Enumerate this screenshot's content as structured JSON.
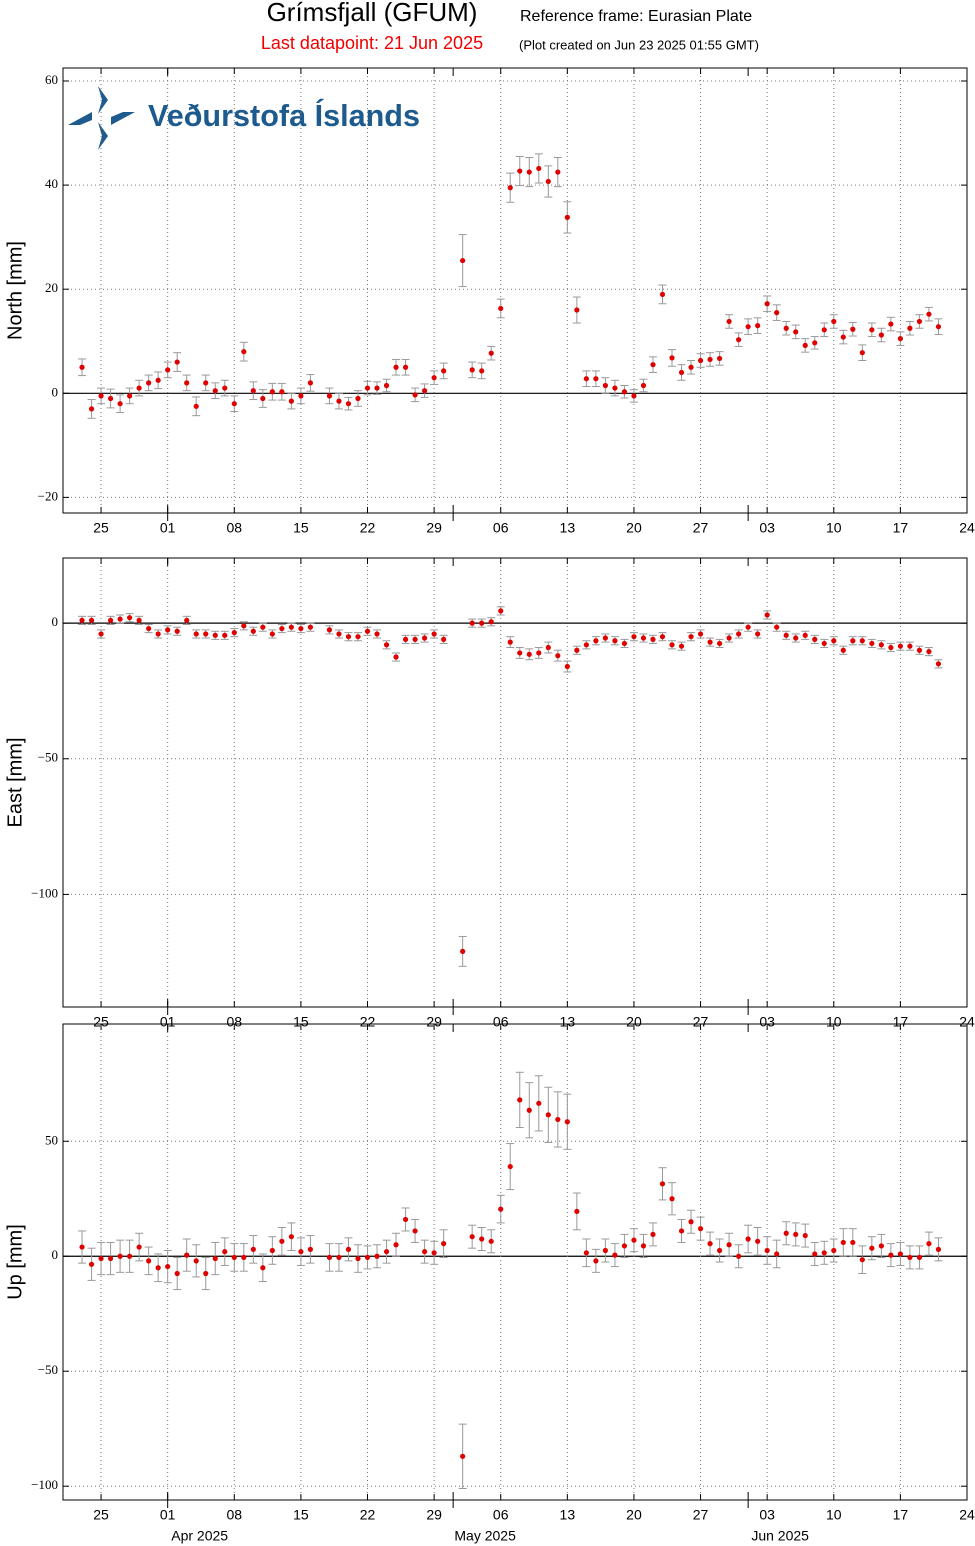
{
  "header": {
    "title": "Grímsfjall (GFUM)",
    "reference_frame": "Reference frame: Eurasian Plate",
    "last_datapoint": "Last datapoint: 21 Jun 2025",
    "created": "(Plot created on Jun 23 2025 01:55 GMT)",
    "logo_text": "Veðurstofa Íslands"
  },
  "chart_data": [
    {
      "type": "scatter",
      "ylabel": "North [mm]",
      "color": "#e00000",
      "error_color": "#999999",
      "grid": true,
      "zero_line": true,
      "xlim": [
        "2025-03-21",
        "2025-06-24"
      ],
      "xticks": [
        {
          "value": "2025-03-25",
          "label": "25"
        },
        {
          "value": "2025-04-01",
          "label": "01"
        },
        {
          "value": "2025-04-08",
          "label": "08"
        },
        {
          "value": "2025-04-15",
          "label": "15"
        },
        {
          "value": "2025-04-22",
          "label": "22"
        },
        {
          "value": "2025-04-29",
          "label": "29"
        },
        {
          "value": "2025-05-06",
          "label": "06"
        },
        {
          "value": "2025-05-13",
          "label": "13"
        },
        {
          "value": "2025-05-20",
          "label": "20"
        },
        {
          "value": "2025-05-27",
          "label": "27"
        },
        {
          "value": "2025-06-03",
          "label": "03"
        },
        {
          "value": "2025-06-10",
          "label": "10"
        },
        {
          "value": "2025-06-17",
          "label": "17"
        },
        {
          "value": "2025-06-24",
          "label": "24"
        }
      ],
      "ylim": [
        -23,
        62.5
      ],
      "yticks": [
        {
          "value": -20,
          "label": "−20"
        },
        0,
        20,
        40,
        60
      ],
      "x": [
        "2025-03-23",
        "2025-03-24",
        "2025-03-25",
        "2025-03-26",
        "2025-03-27",
        "2025-03-28",
        "2025-03-29",
        "2025-03-30",
        "2025-03-31",
        "2025-04-01",
        "2025-04-02",
        "2025-04-03",
        "2025-04-04",
        "2025-04-05",
        "2025-04-06",
        "2025-04-07",
        "2025-04-08",
        "2025-04-09",
        "2025-04-10",
        "2025-04-11",
        "2025-04-12",
        "2025-04-13",
        "2025-04-14",
        "2025-04-15",
        "2025-04-16",
        "2025-04-18",
        "2025-04-19",
        "2025-04-20",
        "2025-04-21",
        "2025-04-22",
        "2025-04-23",
        "2025-04-24",
        "2025-04-25",
        "2025-04-26",
        "2025-04-27",
        "2025-04-28",
        "2025-04-29",
        "2025-04-30",
        "2025-05-02",
        "2025-05-03",
        "2025-05-04",
        "2025-05-05",
        "2025-05-06",
        "2025-05-07",
        "2025-05-08",
        "2025-05-09",
        "2025-05-10",
        "2025-05-11",
        "2025-05-12",
        "2025-05-13",
        "2025-05-14",
        "2025-05-15",
        "2025-05-16",
        "2025-05-17",
        "2025-05-18",
        "2025-05-19",
        "2025-05-20",
        "2025-05-21",
        "2025-05-22",
        "2025-05-23",
        "2025-05-24",
        "2025-05-25",
        "2025-05-26",
        "2025-05-27",
        "2025-05-28",
        "2025-05-29",
        "2025-05-30",
        "2025-05-31",
        "2025-06-01",
        "2025-06-02",
        "2025-06-03",
        "2025-06-04",
        "2025-06-05",
        "2025-06-06",
        "2025-06-07",
        "2025-06-08",
        "2025-06-09",
        "2025-06-10",
        "2025-06-11",
        "2025-06-12",
        "2025-06-13",
        "2025-06-14",
        "2025-06-15",
        "2025-06-16",
        "2025-06-17",
        "2025-06-18",
        "2025-06-19",
        "2025-06-20",
        "2025-06-21"
      ],
      "values": [
        5,
        -3,
        -0.5,
        -1,
        -2,
        -0.5,
        1,
        2,
        2.5,
        4.5,
        6,
        2,
        -2.5,
        2,
        0.5,
        1,
        -2,
        8,
        0.5,
        -1,
        0.3,
        0.3,
        -1.5,
        -0.5,
        2,
        -0.5,
        -1.5,
        -2,
        -1,
        1,
        1,
        1.5,
        5,
        5,
        -0.3,
        0.5,
        3,
        4.3,
        25.5,
        4.5,
        4.3,
        7.7,
        16.3,
        39.5,
        42.7,
        42.5,
        43.2,
        40.7,
        42.5,
        33.8,
        16,
        2.8,
        2.8,
        1.5,
        1,
        0.3,
        -0.5,
        1.5,
        5.5,
        19,
        6.8,
        4,
        5,
        6.3,
        6.5,
        6.7,
        13.8,
        10.3,
        12.8,
        13,
        17.2,
        15.5,
        12.5,
        11.8,
        9.2,
        9.7,
        12.2,
        13.8,
        10.8,
        12.3,
        7.8,
        12.2,
        11.2,
        13.3,
        10.5,
        12.5,
        13.8,
        15.2,
        12.8
      ],
      "errors": [
        1.6,
        1.8,
        1.5,
        1.8,
        1.7,
        1.5,
        1.5,
        1.5,
        1.6,
        1.5,
        1.8,
        1.5,
        1.8,
        1.5,
        1.5,
        1.5,
        1.5,
        1.8,
        1.7,
        1.7,
        1.6,
        1.6,
        1.5,
        1.5,
        1.6,
        1.5,
        1.5,
        1.2,
        1.5,
        1.3,
        1.2,
        1.2,
        1.5,
        1.5,
        1.3,
        1.3,
        1.3,
        1.5,
        5,
        1.5,
        1.5,
        1.3,
        1.8,
        2.8,
        2.8,
        2.8,
        2.8,
        3,
        2.8,
        3,
        2.5,
        1.5,
        1.5,
        1.5,
        1.5,
        1.2,
        1.2,
        1.2,
        1.5,
        1.8,
        1.6,
        1.5,
        1.3,
        1.3,
        1.3,
        1.3,
        1.3,
        1.3,
        1.5,
        1.5,
        1.5,
        1.5,
        1.3,
        1.3,
        1.3,
        1.2,
        1.3,
        1.3,
        1.3,
        1.3,
        1.5,
        1.3,
        1.3,
        1.3,
        1.3,
        1.3,
        1.3,
        1.3,
        1.5
      ]
    },
    {
      "type": "scatter",
      "ylabel": "East [mm]",
      "color": "#e00000",
      "error_color": "#999999",
      "grid": true,
      "zero_line": true,
      "xlim": [
        "2025-03-21",
        "2025-06-24"
      ],
      "xticks": [
        {
          "value": "2025-03-25",
          "label": "25"
        },
        {
          "value": "2025-04-01",
          "label": "01"
        },
        {
          "value": "2025-04-08",
          "label": "08"
        },
        {
          "value": "2025-04-15",
          "label": "15"
        },
        {
          "value": "2025-04-22",
          "label": "22"
        },
        {
          "value": "2025-04-29",
          "label": "29"
        },
        {
          "value": "2025-05-06",
          "label": "06"
        },
        {
          "value": "2025-05-13",
          "label": "13"
        },
        {
          "value": "2025-05-20",
          "label": "20"
        },
        {
          "value": "2025-05-27",
          "label": "27"
        },
        {
          "value": "2025-06-03",
          "label": "03"
        },
        {
          "value": "2025-06-10",
          "label": "10"
        },
        {
          "value": "2025-06-17",
          "label": "17"
        },
        {
          "value": "2025-06-24",
          "label": "24"
        }
      ],
      "ylim": [
        -141.5,
        24
      ],
      "yticks": [
        {
          "value": -100,
          "label": "−100"
        },
        {
          "value": -50,
          "label": "−50"
        },
        0
      ],
      "x": [
        "2025-03-23",
        "2025-03-24",
        "2025-03-25",
        "2025-03-26",
        "2025-03-27",
        "2025-03-28",
        "2025-03-29",
        "2025-03-30",
        "2025-03-31",
        "2025-04-01",
        "2025-04-02",
        "2025-04-03",
        "2025-04-04",
        "2025-04-05",
        "2025-04-06",
        "2025-04-07",
        "2025-04-08",
        "2025-04-09",
        "2025-04-10",
        "2025-04-11",
        "2025-04-12",
        "2025-04-13",
        "2025-04-14",
        "2025-04-15",
        "2025-04-16",
        "2025-04-18",
        "2025-04-19",
        "2025-04-20",
        "2025-04-21",
        "2025-04-22",
        "2025-04-23",
        "2025-04-24",
        "2025-04-25",
        "2025-04-26",
        "2025-04-27",
        "2025-04-28",
        "2025-04-29",
        "2025-04-30",
        "2025-05-02",
        "2025-05-03",
        "2025-05-04",
        "2025-05-05",
        "2025-05-06",
        "2025-05-07",
        "2025-05-08",
        "2025-05-09",
        "2025-05-10",
        "2025-05-11",
        "2025-05-12",
        "2025-05-13",
        "2025-05-14",
        "2025-05-15",
        "2025-05-16",
        "2025-05-17",
        "2025-05-18",
        "2025-05-19",
        "2025-05-20",
        "2025-05-21",
        "2025-05-22",
        "2025-05-23",
        "2025-05-24",
        "2025-05-25",
        "2025-05-26",
        "2025-05-27",
        "2025-05-28",
        "2025-05-29",
        "2025-05-30",
        "2025-05-31",
        "2025-06-01",
        "2025-06-02",
        "2025-06-03",
        "2025-06-04",
        "2025-06-05",
        "2025-06-06",
        "2025-06-07",
        "2025-06-08",
        "2025-06-09",
        "2025-06-10",
        "2025-06-11",
        "2025-06-12",
        "2025-06-13",
        "2025-06-14",
        "2025-06-15",
        "2025-06-16",
        "2025-06-17",
        "2025-06-18",
        "2025-06-19",
        "2025-06-20",
        "2025-06-21"
      ],
      "values": [
        1,
        1,
        -4,
        1,
        1.5,
        2,
        1,
        -2,
        -4,
        -2.5,
        -3,
        1,
        -4,
        -4,
        -4.5,
        -4.5,
        -3.5,
        -1,
        -3,
        -1.5,
        -4,
        -2,
        -1.5,
        -2,
        -1.5,
        -2.5,
        -4,
        -5,
        -5,
        -3,
        -4,
        -8,
        -12.5,
        -6,
        -6,
        -5.5,
        -4,
        -6,
        -121,
        0,
        0,
        0.5,
        4.5,
        -7,
        -11,
        -11.5,
        -11,
        -9,
        -12,
        -16,
        -10,
        -8,
        -6.5,
        -5.5,
        -6.5,
        -7.5,
        -5,
        -5.5,
        -6,
        -5,
        -8,
        -8.5,
        -5,
        -4,
        -7,
        -7.5,
        -5.5,
        -4,
        -1.5,
        -4,
        3,
        -1.5,
        -4.5,
        -5.5,
        -4.5,
        -6,
        -7.5,
        -6.5,
        -10,
        -6.5,
        -6.5,
        -7.5,
        -8,
        -9,
        -8.5,
        -8.5,
        -10,
        -10.5,
        -15
      ],
      "errors": [
        1.5,
        1.5,
        1.5,
        1.5,
        1.5,
        1.5,
        1.5,
        1.5,
        1.5,
        1.5,
        1.5,
        1.5,
        1.5,
        1.5,
        1.5,
        1.5,
        1.5,
        1.5,
        1.5,
        1.5,
        1.5,
        1.5,
        1.5,
        1.5,
        1.5,
        1.5,
        1.5,
        1.5,
        1.5,
        1.5,
        1.5,
        1.5,
        1.5,
        1.5,
        1.5,
        1.5,
        1.5,
        1.5,
        5.5,
        1.5,
        1.5,
        1.5,
        1.5,
        2,
        2,
        2,
        2,
        2,
        2,
        2,
        1.5,
        1.5,
        1.5,
        1.5,
        1.5,
        1.5,
        1.5,
        1.5,
        1.5,
        1.5,
        1.5,
        1.5,
        1.5,
        1.5,
        1.5,
        1.5,
        1.5,
        1.5,
        1.5,
        1.5,
        1.5,
        1.5,
        1.5,
        1.5,
        1.5,
        1.5,
        1.5,
        1.5,
        1.5,
        1.5,
        1.5,
        1.5,
        1.5,
        1.5,
        1.5,
        1.5,
        1.5,
        1.5,
        1.5
      ]
    },
    {
      "type": "scatter",
      "ylabel": "Up [mm]",
      "color": "#e00000",
      "error_color": "#999999",
      "grid": true,
      "zero_line": true,
      "xlim": [
        "2025-03-21",
        "2025-06-24"
      ],
      "xticks": [
        {
          "value": "2025-03-25",
          "label": "25"
        },
        {
          "value": "2025-04-01",
          "label": "01"
        },
        {
          "value": "2025-04-08",
          "label": "08"
        },
        {
          "value": "2025-04-15",
          "label": "15"
        },
        {
          "value": "2025-04-22",
          "label": "22"
        },
        {
          "value": "2025-04-29",
          "label": "29"
        },
        {
          "value": "2025-05-06",
          "label": "06"
        },
        {
          "value": "2025-05-13",
          "label": "13"
        },
        {
          "value": "2025-05-20",
          "label": "20"
        },
        {
          "value": "2025-05-27",
          "label": "27"
        },
        {
          "value": "2025-06-03",
          "label": "03"
        },
        {
          "value": "2025-06-10",
          "label": "10"
        },
        {
          "value": "2025-06-17",
          "label": "17"
        },
        {
          "value": "2025-06-24",
          "label": "24"
        }
      ],
      "month_labels": [
        {
          "value": "2025-04-01",
          "label": "Apr 2025"
        },
        {
          "value": "2025-05-01",
          "label": "May 2025"
        },
        {
          "value": "2025-06-01",
          "label": "Jun 2025"
        }
      ],
      "ylim": [
        -106,
        101
      ],
      "yticks": [
        {
          "value": -100,
          "label": "−100"
        },
        {
          "value": -50,
          "label": "−50"
        },
        0,
        50
      ],
      "x": [
        "2025-03-23",
        "2025-03-24",
        "2025-03-25",
        "2025-03-26",
        "2025-03-27",
        "2025-03-28",
        "2025-03-29",
        "2025-03-30",
        "2025-03-31",
        "2025-04-01",
        "2025-04-02",
        "2025-04-03",
        "2025-04-04",
        "2025-04-05",
        "2025-04-06",
        "2025-04-07",
        "2025-04-08",
        "2025-04-09",
        "2025-04-10",
        "2025-04-11",
        "2025-04-12",
        "2025-04-13",
        "2025-04-14",
        "2025-04-15",
        "2025-04-16",
        "2025-04-18",
        "2025-04-19",
        "2025-04-20",
        "2025-04-21",
        "2025-04-22",
        "2025-04-23",
        "2025-04-24",
        "2025-04-25",
        "2025-04-26",
        "2025-04-27",
        "2025-04-28",
        "2025-04-29",
        "2025-04-30",
        "2025-05-02",
        "2025-05-03",
        "2025-05-04",
        "2025-05-05",
        "2025-05-06",
        "2025-05-07",
        "2025-05-08",
        "2025-05-09",
        "2025-05-10",
        "2025-05-11",
        "2025-05-12",
        "2025-05-13",
        "2025-05-14",
        "2025-05-15",
        "2025-05-16",
        "2025-05-17",
        "2025-05-18",
        "2025-05-19",
        "2025-05-20",
        "2025-05-21",
        "2025-05-22",
        "2025-05-23",
        "2025-05-24",
        "2025-05-25",
        "2025-05-26",
        "2025-05-27",
        "2025-05-28",
        "2025-05-29",
        "2025-05-30",
        "2025-05-31",
        "2025-06-01",
        "2025-06-02",
        "2025-06-03",
        "2025-06-04",
        "2025-06-05",
        "2025-06-06",
        "2025-06-07",
        "2025-06-08",
        "2025-06-09",
        "2025-06-10",
        "2025-06-11",
        "2025-06-12",
        "2025-06-13",
        "2025-06-14",
        "2025-06-15",
        "2025-06-16",
        "2025-06-17",
        "2025-06-18",
        "2025-06-19",
        "2025-06-20",
        "2025-06-21"
      ],
      "values": [
        4,
        -3.5,
        -1,
        -1,
        0,
        0,
        4,
        -2,
        -5,
        -4.5,
        -7.5,
        0.5,
        -2,
        -7.5,
        -1,
        2,
        -0.5,
        -0.5,
        3,
        -5,
        2.5,
        6.5,
        8.5,
        2,
        3,
        -0.5,
        -0.5,
        3,
        -1,
        -0.5,
        0,
        2,
        5,
        16,
        11,
        2,
        1.5,
        5.5,
        -87,
        8.5,
        7.5,
        6.5,
        20.5,
        39,
        68,
        63.5,
        66.5,
        61.5,
        59.5,
        58.5,
        19.5,
        1.5,
        -2,
        2.5,
        0.5,
        4.5,
        7,
        4.5,
        9.5,
        31.5,
        25,
        11,
        15,
        12,
        5.5,
        2.5,
        5,
        0,
        7.5,
        6.5,
        2.5,
        1,
        10,
        9.5,
        9,
        1,
        1.5,
        2.5,
        6,
        6,
        -1.5,
        3.5,
        4.5,
        0.5,
        1,
        -0.5,
        -0.5,
        5.5,
        3
      ],
      "errors": [
        7,
        7,
        7,
        7,
        7,
        7,
        6,
        6,
        6,
        7,
        7,
        7,
        7,
        7,
        7,
        6,
        6,
        6,
        6,
        6,
        6,
        6,
        6,
        6,
        6,
        6,
        6,
        5,
        6,
        5,
        5,
        5,
        5,
        5,
        5,
        5,
        5,
        6,
        14,
        5,
        5,
        5,
        6,
        10,
        12,
        12,
        12,
        12,
        12,
        12,
        8,
        6,
        5,
        5,
        5,
        5,
        5,
        5,
        5,
        7,
        7,
        5,
        5,
        5,
        5,
        5,
        5,
        5,
        6,
        6,
        6,
        6,
        5,
        5,
        5,
        5,
        5,
        5,
        6,
        6,
        6,
        5,
        5,
        5,
        5,
        5,
        5,
        5,
        5
      ]
    }
  ]
}
